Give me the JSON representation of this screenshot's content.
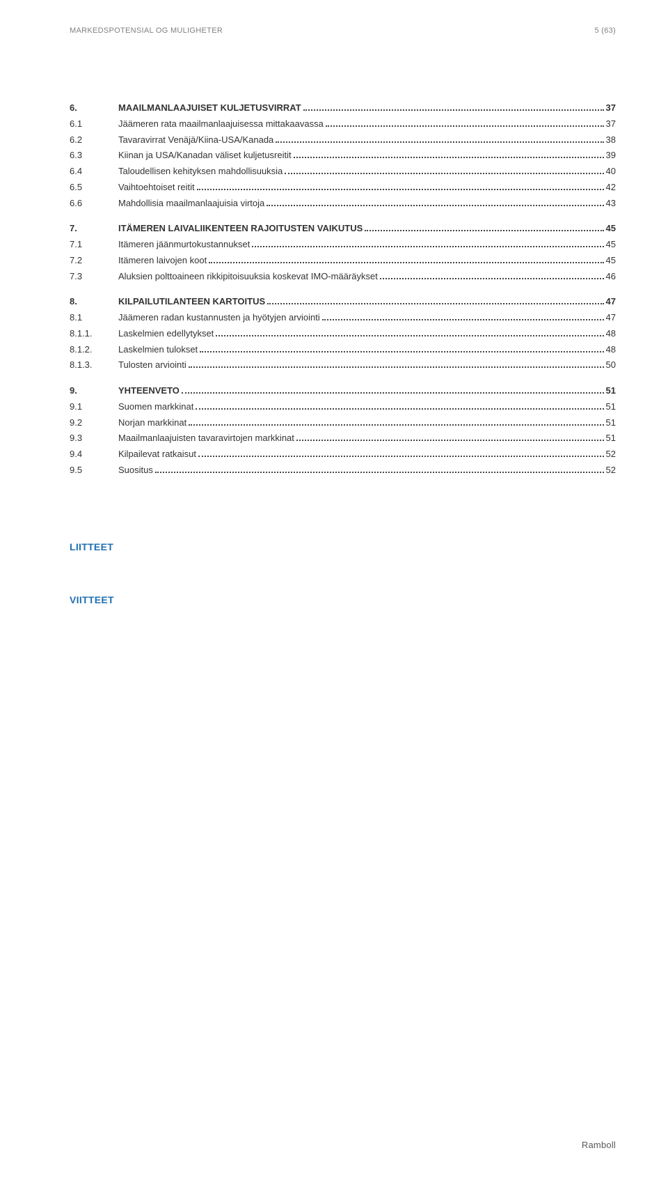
{
  "header": {
    "left": "MARKEDSPOTENSIAL OG MULIGHETER",
    "right": "5 (63)"
  },
  "toc": [
    {
      "type": "gap"
    },
    {
      "num": "6.",
      "label": "MAAILMANLAAJUISET KULJETUSVIRRAT",
      "page": "37",
      "bold": true
    },
    {
      "num": "6.1",
      "label": "Jäämeren rata maailmanlaajuisessa mittakaavassa",
      "page": "37"
    },
    {
      "num": "6.2",
      "label": "Tavaravirrat Venäjä/Kiina-USA/Kanada",
      "page": "38"
    },
    {
      "num": "6.3",
      "label": "Kiinan ja USA/Kanadan väliset kuljetusreitit",
      "page": "39"
    },
    {
      "num": "6.4",
      "label": "Taloudellisen kehityksen mahdollisuuksia",
      "page": "40"
    },
    {
      "num": "6.5",
      "label": "Vaihtoehtoiset reitit",
      "page": "42"
    },
    {
      "num": "6.6",
      "label": "Mahdollisia maailmanlaajuisia virtoja",
      "page": "43"
    },
    {
      "type": "gap"
    },
    {
      "num": "7.",
      "label": "ITÄMEREN LAIVALIIKENTEEN RAJOITUSTEN VAIKUTUS",
      "page": "45",
      "bold": true
    },
    {
      "num": "7.1",
      "label": "Itämeren jäänmurtokustannukset",
      "page": "45"
    },
    {
      "num": "7.2",
      "label": "Itämeren laivojen koot",
      "page": "45"
    },
    {
      "num": "7.3",
      "label": "Aluksien polttoaineen rikkipitoisuuksia koskevat IMO-määräykset",
      "page": "46"
    },
    {
      "type": "gap"
    },
    {
      "num": "8.",
      "label": "KILPAILUTILANTEEN KARTOITUS",
      "page": "47",
      "bold": true
    },
    {
      "num": "8.1",
      "label": "Jäämeren radan kustannusten ja hyötyjen arviointi",
      "page": "47"
    },
    {
      "num": "8.1.1.",
      "label": "Laskelmien edellytykset",
      "page": "48"
    },
    {
      "num": "8.1.2.",
      "label": "Laskelmien tulokset",
      "page": "48"
    },
    {
      "num": "8.1.3.",
      "label": "Tulosten arviointi",
      "page": "50"
    },
    {
      "type": "gap"
    },
    {
      "num": "9.",
      "label": "YHTEENVETO",
      "page": "51",
      "bold": true
    },
    {
      "num": "9.1",
      "label": "Suomen markkinat",
      "page": "51"
    },
    {
      "num": "9.2",
      "label": "Norjan markkinat",
      "page": "51"
    },
    {
      "num": "9.3",
      "label": "Maailmanlaajuisten tavaravirtojen markkinat",
      "page": "51"
    },
    {
      "num": "9.4",
      "label": "Kilpailevat ratkaisut",
      "page": "52"
    },
    {
      "num": "9.5",
      "label": "Suositus",
      "page": "52"
    }
  ],
  "appendix": {
    "title1": "LIITTEET",
    "title2": "VIITTEET"
  },
  "footer": {
    "logo": "Ramboll"
  }
}
